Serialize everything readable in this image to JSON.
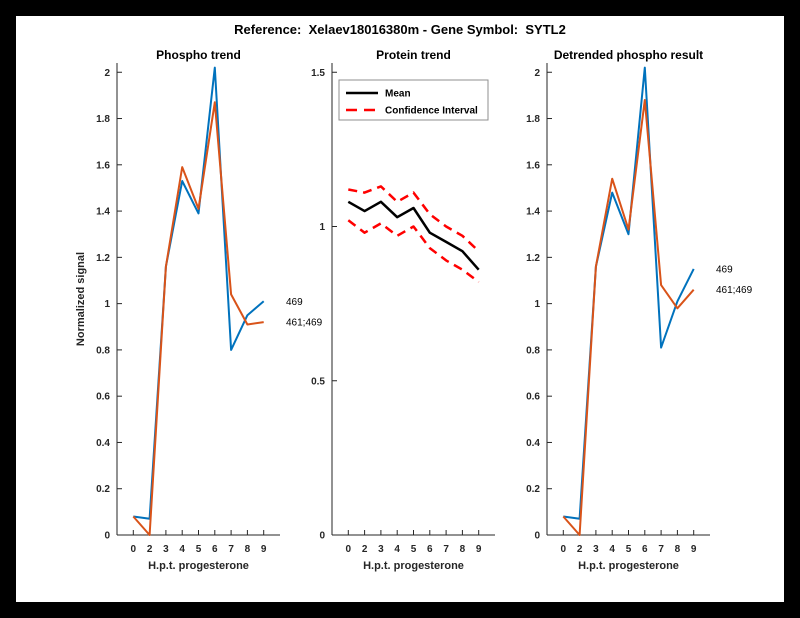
{
  "title": "Reference:  Xelaev18016380m - Gene Symbol:  SYTL2",
  "axis_color": "#262626",
  "chart_data": [
    {
      "type": "line",
      "title": "Phospho trend",
      "xlabel": "H.p.t. progesterone",
      "ylabel": "Normalized signal",
      "x_tick_labels": [
        "0",
        "2",
        "3",
        "4",
        "5",
        "6",
        "7",
        "8",
        "9"
      ],
      "y_tick_values": [
        0,
        0.2,
        0.4,
        0.6,
        0.8,
        1,
        1.2,
        1.4,
        1.6,
        1.8,
        2
      ],
      "y_tick_labels": [
        "0",
        "0.2",
        "0.4",
        "0.6",
        "0.8",
        "1",
        "1.2",
        "1.4",
        "1.6",
        "1.8",
        "2"
      ],
      "ylim": [
        0,
        2.04
      ],
      "grid": false,
      "legend": null,
      "series": [
        {
          "name": "469",
          "color": "#0072BD",
          "dash": "solid",
          "width": 2,
          "values": [
            0.08,
            0.07,
            1.16,
            1.53,
            1.39,
            2.02,
            0.8,
            0.95,
            1.01
          ],
          "end_label": "469"
        },
        {
          "name": "461;469",
          "color": "#D95319",
          "dash": "solid",
          "width": 2,
          "values": [
            0.08,
            0.0,
            1.16,
            1.59,
            1.41,
            1.87,
            1.04,
            0.91,
            0.92
          ],
          "end_label": "461;469"
        }
      ]
    },
    {
      "type": "line",
      "title": "Protein trend",
      "xlabel": "H.p.t. progesterone",
      "ylabel": "",
      "x_tick_labels": [
        "0",
        "2",
        "3",
        "4",
        "5",
        "6",
        "7",
        "8",
        "9"
      ],
      "y_tick_values": [
        0,
        0.5,
        1,
        1.5
      ],
      "y_tick_labels": [
        "0",
        "0.5",
        "1",
        "1.5"
      ],
      "ylim": [
        0,
        1.53
      ],
      "grid": false,
      "legend": {
        "position": "top-left",
        "entries": [
          {
            "label": "Mean",
            "color": "#000000",
            "dash": "solid"
          },
          {
            "label": "Confidence Interval",
            "color": "#FF0000",
            "dash": "dashed"
          }
        ]
      },
      "series": [
        {
          "name": "Mean",
          "color": "#000000",
          "dash": "solid",
          "width": 2.5,
          "values": [
            1.08,
            1.05,
            1.08,
            1.03,
            1.06,
            0.98,
            0.95,
            0.92,
            0.86
          ]
        },
        {
          "name": "Confidence Interval upper",
          "color": "#FF0000",
          "dash": "dashed",
          "width": 2.5,
          "values": [
            1.12,
            1.11,
            1.13,
            1.08,
            1.11,
            1.04,
            1.0,
            0.97,
            0.92
          ]
        },
        {
          "name": "Confidence Interval lower",
          "color": "#FF0000",
          "dash": "dashed",
          "width": 2.5,
          "values": [
            1.02,
            0.98,
            1.01,
            0.97,
            1.0,
            0.93,
            0.89,
            0.86,
            0.82
          ]
        }
      ]
    },
    {
      "type": "line",
      "title": "Detrended phospho result",
      "xlabel": "H.p.t. progesterone",
      "ylabel": "",
      "x_tick_labels": [
        "0",
        "2",
        "3",
        "4",
        "5",
        "6",
        "7",
        "8",
        "9"
      ],
      "y_tick_values": [
        0,
        0.2,
        0.4,
        0.6,
        0.8,
        1,
        1.2,
        1.4,
        1.6,
        1.8,
        2
      ],
      "y_tick_labels": [
        "0",
        "0.2",
        "0.4",
        "0.6",
        "0.8",
        "1",
        "1.2",
        "1.4",
        "1.6",
        "1.8",
        "2"
      ],
      "ylim": [
        0,
        2.04
      ],
      "grid": false,
      "legend": null,
      "series": [
        {
          "name": "469",
          "color": "#0072BD",
          "dash": "solid",
          "width": 2,
          "values": [
            0.08,
            0.07,
            1.16,
            1.48,
            1.3,
            2.02,
            0.81,
            1.01,
            1.15
          ],
          "end_label": "469"
        },
        {
          "name": "461;469",
          "color": "#D95319",
          "dash": "solid",
          "width": 2,
          "values": [
            0.08,
            0.0,
            1.16,
            1.54,
            1.32,
            1.88,
            1.08,
            0.98,
            1.06
          ],
          "end_label": "461;469"
        }
      ]
    }
  ]
}
